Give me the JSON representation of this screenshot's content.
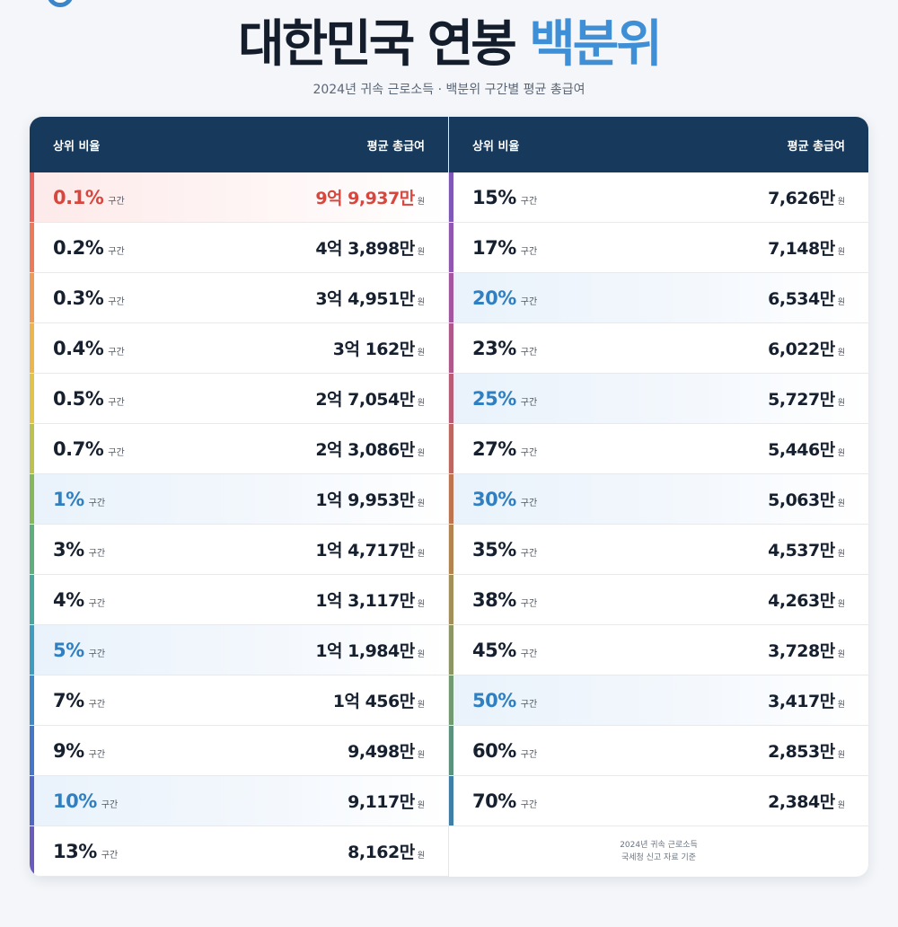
{
  "title": {
    "main": "대한민국 연봉",
    "accent": "백분위"
  },
  "subtitle": "2024년 귀속 근로소득 · 백분위 구간별 평균 총급여",
  "header": {
    "rank_label": "상위 비율",
    "salary_label": "평균 총급여"
  },
  "unit_range": "구간",
  "unit_won": "원",
  "left_rows": [
    {
      "pct": "0.1%",
      "salary": "9억 9,937만",
      "style": "top",
      "bar": "#e8615a"
    },
    {
      "pct": "0.2%",
      "salary": "4억 3,898만",
      "style": "",
      "bar": "#ec7b5c"
    },
    {
      "pct": "0.3%",
      "salary": "3억 4,951만",
      "style": "",
      "bar": "#ee9a58"
    },
    {
      "pct": "0.4%",
      "salary": "3억 162만",
      "style": "",
      "bar": "#eeb54e"
    },
    {
      "pct": "0.5%",
      "salary": "2억 7,054만",
      "style": "",
      "bar": "#e2c44a"
    },
    {
      "pct": "0.7%",
      "salary": "2억 3,086만",
      "style": "",
      "bar": "#bcc24d"
    },
    {
      "pct": "1%",
      "salary": "1억 9,953만",
      "style": "hl",
      "bar": "#86b85a"
    },
    {
      "pct": "3%",
      "salary": "1억 4,717만",
      "style": "",
      "bar": "#5fae7e"
    },
    {
      "pct": "4%",
      "salary": "1억 3,117만",
      "style": "",
      "bar": "#49a79d"
    },
    {
      "pct": "5%",
      "salary": "1억 1,984만",
      "style": "hl",
      "bar": "#3f9cbc"
    },
    {
      "pct": "7%",
      "salary": "1억 456만",
      "style": "",
      "bar": "#3e89c6"
    },
    {
      "pct": "9%",
      "salary": "9,498만",
      "style": "",
      "bar": "#4676c6"
    },
    {
      "pct": "10%",
      "salary": "9,117만",
      "style": "hl",
      "bar": "#5166c2"
    },
    {
      "pct": "13%",
      "salary": "8,162만",
      "style": "",
      "bar": "#6a5bbd"
    }
  ],
  "right_rows": [
    {
      "pct": "15%",
      "salary": "7,626만",
      "style": "",
      "bar": "#7f58b8"
    },
    {
      "pct": "17%",
      "salary": "7,148만",
      "style": "",
      "bar": "#9156b0"
    },
    {
      "pct": "20%",
      "salary": "6,534만",
      "style": "hl",
      "bar": "#a2569f"
    },
    {
      "pct": "23%",
      "salary": "6,022만",
      "style": "",
      "bar": "#b05889"
    },
    {
      "pct": "25%",
      "salary": "5,727만",
      "style": "hl",
      "bar": "#ba5c75"
    },
    {
      "pct": "27%",
      "salary": "5,446만",
      "style": "",
      "bar": "#be6660"
    },
    {
      "pct": "30%",
      "salary": "5,063만",
      "style": "hl",
      "bar": "#bd744f"
    },
    {
      "pct": "35%",
      "salary": "4,537만",
      "style": "",
      "bar": "#b38450"
    },
    {
      "pct": "38%",
      "salary": "4,263만",
      "style": "",
      "bar": "#a28f5a"
    },
    {
      "pct": "45%",
      "salary": "3,728만",
      "style": "",
      "bar": "#8c9664"
    },
    {
      "pct": "50%",
      "salary": "3,417만",
      "style": "hl",
      "bar": "#72996f"
    },
    {
      "pct": "60%",
      "salary": "2,853만",
      "style": "",
      "bar": "#5a927e"
    },
    {
      "pct": "70%",
      "salary": "2,384만",
      "style": "",
      "bar": "#3f7fa6"
    }
  ],
  "footnote": {
    "line1": "2024년 귀속 근로소득",
    "line2": "국세청 신고 자료 기준"
  }
}
